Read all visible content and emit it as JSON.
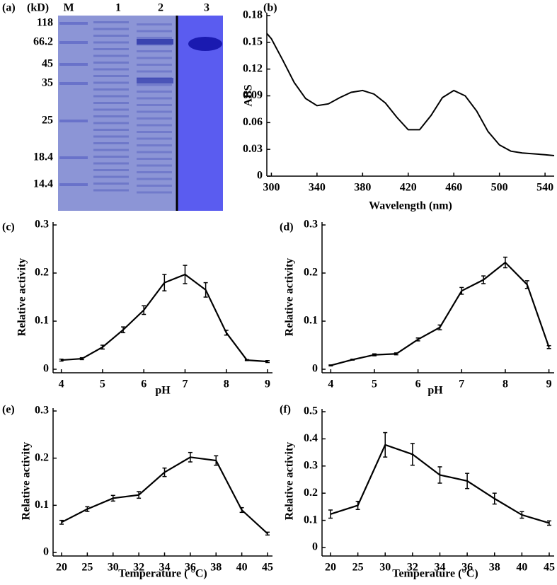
{
  "chart_data": [
    {
      "type": "gel",
      "label": "(a)",
      "unit": "(kD)",
      "lanes": [
        "M",
        "1",
        "2",
        "3"
      ],
      "markers": [
        118,
        66.2,
        45,
        35,
        25,
        18.4,
        14.4
      ]
    },
    {
      "type": "line",
      "label": "(b)",
      "ylabel": "ABS",
      "xlabel": "Wavelength (nm)",
      "x": [
        296,
        300,
        310,
        320,
        330,
        340,
        350,
        360,
        370,
        380,
        390,
        400,
        410,
        420,
        430,
        440,
        450,
        460,
        470,
        480,
        490,
        500,
        510,
        520,
        540,
        548
      ],
      "values": [
        0.16,
        0.154,
        0.13,
        0.105,
        0.087,
        0.079,
        0.081,
        0.088,
        0.094,
        0.096,
        0.092,
        0.082,
        0.066,
        0.052,
        0.052,
        0.068,
        0.088,
        0.096,
        0.09,
        0.073,
        0.05,
        0.035,
        0.028,
        0.026,
        0.024,
        0.023
      ],
      "color": "#000000",
      "xlim": [
        296,
        548
      ],
      "xticks": [
        300,
        340,
        380,
        420,
        460,
        500,
        540
      ],
      "ylim": [
        0,
        0.18
      ],
      "yticks": [
        0,
        0.03,
        0.06,
        0.09,
        0.12,
        0.15,
        0.18
      ]
    },
    {
      "type": "errorline",
      "label": "(c)",
      "ylabel": "Relative activity",
      "xlabel": "pH",
      "x": [
        4,
        4.5,
        5,
        5.5,
        6,
        6.5,
        7,
        7.5,
        8,
        8.5,
        9
      ],
      "values": [
        0.019,
        0.022,
        0.046,
        0.082,
        0.123,
        0.18,
        0.197,
        0.165,
        0.076,
        0.019,
        0.016
      ],
      "errors": [
        0.002,
        0.002,
        0.004,
        0.006,
        0.009,
        0.017,
        0.019,
        0.015,
        0.005,
        0.001,
        0.002
      ],
      "color": "#000000",
      "xlim": [
        3.8,
        9.12
      ],
      "xticks": [
        4,
        5,
        6,
        7,
        8,
        9
      ],
      "ylim": [
        0,
        0.3
      ],
      "yticks": [
        0,
        0.1,
        0.2,
        0.3
      ]
    },
    {
      "type": "errorline",
      "label": "(d)",
      "ylabel": "Relative activity",
      "xlabel": "pH",
      "x": [
        4,
        4.5,
        5,
        5.5,
        6,
        6.5,
        7,
        7.5,
        8,
        8.5,
        9
      ],
      "values": [
        0.008,
        0.02,
        0.03,
        0.032,
        0.062,
        0.087,
        0.163,
        0.186,
        0.222,
        0.176,
        0.046
      ],
      "errors": [
        0.001,
        0.001,
        0.002,
        0.002,
        0.003,
        0.005,
        0.007,
        0.008,
        0.011,
        0.008,
        0.003
      ],
      "color": "#000000",
      "xlim": [
        3.8,
        9.12
      ],
      "xticks": [
        4,
        5,
        6,
        7,
        8,
        9
      ],
      "ylim": [
        0,
        0.3
      ],
      "yticks": [
        0,
        0.1,
        0.2,
        0.3
      ]
    },
    {
      "type": "errorline",
      "label": "(e)",
      "ylabel": "Relative activity",
      "xlabel": "Temperature ( °C)",
      "categories": [
        "20",
        "25",
        "30",
        "32",
        "34",
        "36",
        "38",
        "40",
        "45"
      ],
      "values": [
        0.064,
        0.092,
        0.115,
        0.122,
        0.17,
        0.202,
        0.195,
        0.09,
        0.04
      ],
      "errors": [
        0.004,
        0.005,
        0.006,
        0.007,
        0.009,
        0.01,
        0.01,
        0.005,
        0.003
      ],
      "color": "#000000",
      "ylim": [
        0,
        0.3
      ],
      "yticks": [
        0,
        0.1,
        0.2,
        0.3
      ]
    },
    {
      "type": "errorline",
      "label": "(f)",
      "ylabel": "Relative activity",
      "xlabel": "Temperature (°C)",
      "categories": [
        "20",
        "25",
        "30",
        "32",
        "34",
        "36",
        "38",
        "40",
        "45"
      ],
      "values": [
        0.123,
        0.155,
        0.378,
        0.343,
        0.267,
        0.245,
        0.18,
        0.12,
        0.09
      ],
      "errors": [
        0.015,
        0.015,
        0.045,
        0.04,
        0.03,
        0.028,
        0.02,
        0.012,
        0.008
      ],
      "color": "#000000",
      "ylim": [
        0,
        0.5
      ],
      "yticks": [
        0,
        0.1,
        0.2,
        0.3,
        0.4,
        0.5
      ]
    }
  ]
}
